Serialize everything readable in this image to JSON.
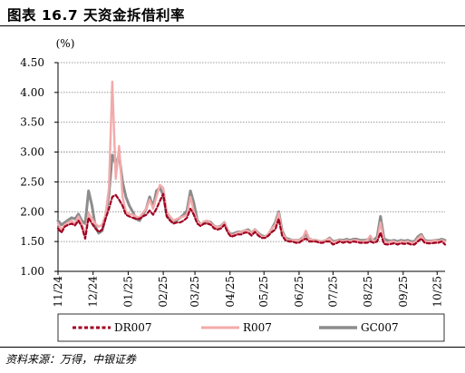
{
  "header": {
    "title": "图表 16.7 天资金拆借利率"
  },
  "footer": {
    "source": "资料来源：万得，中银证券"
  },
  "chart_data": {
    "type": "line",
    "ylabel": "(%)",
    "ylim": [
      1.0,
      4.5
    ],
    "yticks": [
      "1.00",
      "1.50",
      "2.00",
      "2.50",
      "3.00",
      "3.50",
      "4.00",
      "4.50"
    ],
    "grid": "horizontal dashed",
    "legend": "bottom",
    "x": [
      0,
      3,
      6,
      9,
      12,
      15,
      18,
      21,
      24,
      27,
      30,
      33,
      36,
      39,
      42,
      45,
      48,
      51,
      54,
      57,
      60,
      63,
      66,
      69,
      72,
      75,
      78,
      81,
      84,
      87,
      90,
      93,
      96,
      99,
      102,
      105,
      108,
      111,
      114,
      117,
      120,
      123,
      126,
      129,
      132,
      135,
      138,
      141,
      144,
      147,
      150,
      153,
      156,
      159,
      162,
      165,
      168,
      171,
      174,
      177,
      180,
      183,
      186,
      189,
      192,
      195,
      198,
      201,
      204,
      207,
      210,
      213,
      216,
      219,
      222,
      225,
      228,
      231,
      234,
      237,
      240,
      243,
      246,
      249,
      252,
      255,
      258,
      261,
      264,
      267,
      270,
      273,
      276,
      279,
      282,
      285,
      288,
      291,
      294,
      297,
      300,
      303,
      306,
      309,
      312,
      315,
      318,
      321,
      324,
      327,
      330,
      333,
      336,
      339,
      342
    ],
    "xticks": [
      "11/24",
      "12/24",
      "01/25",
      "02/25",
      "03/25",
      "04/25",
      "05/25",
      "06/25",
      "07/25",
      "08/25",
      "09/25",
      "10/25"
    ],
    "xtick_pos": [
      0,
      31,
      62,
      93,
      121,
      152,
      182,
      213,
      243,
      274,
      305,
      335
    ],
    "series": [
      {
        "name": "DR007",
        "color": "#A00021",
        "style": "dashed",
        "values": [
          1.72,
          1.65,
          1.75,
          1.78,
          1.8,
          1.77,
          1.85,
          1.75,
          1.55,
          1.9,
          1.8,
          1.72,
          1.66,
          1.7,
          1.88,
          2.05,
          2.25,
          2.28,
          2.2,
          2.1,
          1.95,
          1.92,
          1.9,
          1.88,
          1.88,
          1.92,
          1.95,
          2.02,
          1.95,
          2.05,
          2.18,
          2.3,
          1.92,
          1.85,
          1.8,
          1.82,
          1.82,
          1.85,
          1.9,
          2.05,
          1.95,
          1.8,
          1.76,
          1.8,
          1.8,
          1.78,
          1.72,
          1.7,
          1.72,
          1.78,
          1.65,
          1.58,
          1.6,
          1.62,
          1.62,
          1.65,
          1.65,
          1.6,
          1.66,
          1.6,
          1.56,
          1.56,
          1.6,
          1.66,
          1.7,
          1.88,
          1.6,
          1.52,
          1.5,
          1.5,
          1.48,
          1.48,
          1.52,
          1.55,
          1.5,
          1.5,
          1.5,
          1.48,
          1.48,
          1.5,
          1.5,
          1.45,
          1.47,
          1.5,
          1.48,
          1.5,
          1.48,
          1.5,
          1.49,
          1.48,
          1.48,
          1.48,
          1.5,
          1.48,
          1.5,
          1.65,
          1.46,
          1.45,
          1.46,
          1.47,
          1.45,
          1.47,
          1.46,
          1.47,
          1.45,
          1.45,
          1.5,
          1.55,
          1.48,
          1.47,
          1.47,
          1.48,
          1.48,
          1.5,
          1.45
        ]
      },
      {
        "name": "R007",
        "color": "#F2AAAA",
        "style": "solid",
        "values": [
          1.8,
          1.7,
          1.78,
          1.82,
          1.85,
          1.8,
          1.92,
          1.8,
          1.62,
          1.98,
          1.88,
          1.8,
          1.75,
          1.78,
          1.95,
          2.4,
          4.18,
          2.55,
          3.1,
          2.25,
          2.0,
          1.96,
          1.95,
          1.92,
          1.9,
          1.98,
          2.05,
          2.2,
          2.05,
          2.25,
          2.45,
          2.4,
          2.0,
          1.92,
          1.85,
          1.88,
          1.9,
          1.92,
          1.95,
          2.25,
          2.0,
          1.84,
          1.78,
          1.84,
          1.85,
          1.8,
          1.76,
          1.74,
          1.75,
          1.82,
          1.68,
          1.6,
          1.62,
          1.65,
          1.66,
          1.68,
          1.68,
          1.64,
          1.7,
          1.63,
          1.58,
          1.58,
          1.63,
          1.72,
          1.78,
          1.98,
          1.65,
          1.55,
          1.52,
          1.52,
          1.52,
          1.52,
          1.55,
          1.68,
          1.55,
          1.52,
          1.52,
          1.5,
          1.5,
          1.52,
          1.55,
          1.48,
          1.5,
          1.52,
          1.5,
          1.52,
          1.5,
          1.52,
          1.52,
          1.5,
          1.5,
          1.52,
          1.6,
          1.5,
          1.52,
          1.82,
          1.5,
          1.48,
          1.5,
          1.5,
          1.48,
          1.5,
          1.49,
          1.5,
          1.48,
          1.48,
          1.55,
          1.6,
          1.5,
          1.5,
          1.5,
          1.52,
          1.5,
          1.52,
          1.5
        ]
      },
      {
        "name": "GC007",
        "color": "#8C8C8C",
        "style": "solid",
        "values": [
          1.85,
          1.78,
          1.82,
          1.86,
          1.9,
          1.88,
          1.96,
          1.85,
          1.8,
          2.35,
          2.1,
          1.75,
          1.64,
          1.68,
          1.9,
          2.3,
          2.95,
          2.8,
          2.95,
          2.5,
          2.25,
          2.1,
          2.0,
          1.88,
          1.85,
          1.95,
          2.05,
          2.25,
          2.08,
          2.35,
          2.4,
          2.28,
          1.95,
          1.88,
          1.82,
          1.86,
          1.9,
          1.95,
          2.02,
          2.35,
          2.15,
          1.86,
          1.78,
          1.82,
          1.84,
          1.82,
          1.76,
          1.74,
          1.76,
          1.82,
          1.68,
          1.62,
          1.64,
          1.66,
          1.66,
          1.68,
          1.7,
          1.64,
          1.7,
          1.64,
          1.6,
          1.58,
          1.62,
          1.72,
          1.82,
          2.0,
          1.68,
          1.56,
          1.54,
          1.52,
          1.52,
          1.52,
          1.56,
          1.62,
          1.55,
          1.52,
          1.52,
          1.5,
          1.5,
          1.52,
          1.56,
          1.5,
          1.51,
          1.53,
          1.52,
          1.54,
          1.52,
          1.54,
          1.54,
          1.52,
          1.52,
          1.53,
          1.55,
          1.52,
          1.58,
          1.92,
          1.55,
          1.52,
          1.51,
          1.52,
          1.5,
          1.52,
          1.51,
          1.52,
          1.5,
          1.5,
          1.58,
          1.62,
          1.52,
          1.51,
          1.51,
          1.52,
          1.52,
          1.54,
          1.52
        ]
      }
    ]
  }
}
